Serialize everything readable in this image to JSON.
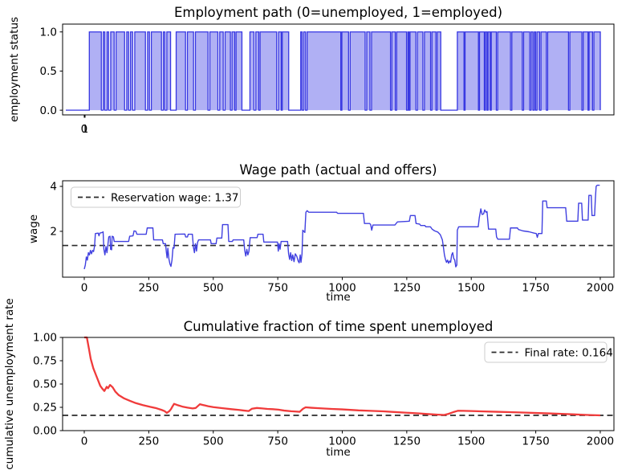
{
  "figure": {
    "background": "#ffffff"
  },
  "colors": {
    "employment_line": "#3636e2",
    "employment_fill": "#b0b0f4",
    "wage_line": "#4040e0",
    "cumulative_line": "#f03b3b",
    "dashed_line": "#2b2b2b",
    "legend_border": "#cccccc",
    "legend_background": "#ffffff",
    "axes_spine": "#000000",
    "text": "#000000"
  },
  "chart_data": [
    {
      "id": "employment",
      "type": "area-step",
      "title": "Employment path (0=unemployed, 1=employed)",
      "xlabel": "",
      "ylabel": "employment status",
      "ytick_labels": [
        "0.0",
        "0.5",
        "1.0"
      ],
      "ytick_values": [
        0,
        0.5,
        1
      ],
      "xticks": [
        {
          "label": "0",
          "t": 69
        },
        {
          "label": "1",
          "t": 72
        }
      ],
      "xlim": [
        -12,
        2051
      ],
      "ylim": [
        -0.06,
        1.1
      ],
      "legend": null,
      "grid": false,
      "employed_value": 1,
      "unemployed_value": 0,
      "time_range": [
        0,
        2000
      ],
      "employed_intervals": [
        [
          88,
          133
        ],
        [
          140,
          146
        ],
        [
          154,
          160
        ],
        [
          168,
          181
        ],
        [
          188,
          220
        ],
        [
          228,
          235
        ],
        [
          242,
          250
        ],
        [
          258,
          298
        ],
        [
          306,
          313
        ],
        [
          320,
          358
        ],
        [
          365,
          371
        ],
        [
          378,
          392
        ],
        [
          413,
          448
        ],
        [
          455,
          478
        ],
        [
          485,
          532
        ],
        [
          539,
          569
        ],
        [
          576,
          589
        ],
        [
          596,
          616
        ],
        [
          622,
          632
        ],
        [
          637,
          659
        ],
        [
          689,
          704
        ],
        [
          711,
          722
        ],
        [
          727,
          789
        ],
        [
          796,
          806
        ],
        [
          810,
          834
        ],
        [
          879,
          884
        ],
        [
          890,
          897
        ],
        [
          903,
          1029
        ],
        [
          1033,
          1058
        ],
        [
          1064,
          1120
        ],
        [
          1126,
          1138
        ],
        [
          1144,
          1215
        ],
        [
          1220,
          1233
        ],
        [
          1238,
          1275
        ],
        [
          1280,
          1284
        ],
        [
          1288,
          1310
        ],
        [
          1316,
          1336
        ],
        [
          1342,
          1365
        ],
        [
          1370,
          1385
        ],
        [
          1390,
          1403
        ],
        [
          1465,
          1490
        ],
        [
          1494,
          1544
        ],
        [
          1548,
          1566
        ],
        [
          1570,
          1576
        ],
        [
          1580,
          1588
        ],
        [
          1592,
          1611
        ],
        [
          1616,
          1664
        ],
        [
          1669,
          1708
        ],
        [
          1713,
          1736
        ],
        [
          1741,
          1748
        ],
        [
          1753,
          1758
        ],
        [
          1763,
          1773
        ],
        [
          1778,
          1798
        ],
        [
          1803,
          1881
        ],
        [
          1886,
          1931
        ],
        [
          1936,
          1954
        ],
        [
          1958,
          1971
        ],
        [
          1976,
          2000
        ]
      ]
    },
    {
      "id": "wage",
      "type": "line",
      "title": "Wage path (actual and offers)",
      "xlabel": "time",
      "ylabel": "wage",
      "xtick_values": [
        0,
        250,
        500,
        750,
        1000,
        1250,
        1500,
        1750,
        2000
      ],
      "xtick_labels": [
        "0",
        "250",
        "500",
        "750",
        "1000",
        "1250",
        "1500",
        "1750",
        "2000"
      ],
      "ytick_values": [
        2,
        4
      ],
      "ytick_labels": [
        "2",
        "4"
      ],
      "xlim": [
        -84,
        2053
      ],
      "ylim": [
        -0.04,
        4.25
      ],
      "grid": false,
      "reservation_wage": 1.37,
      "legend_label": "Reservation wage: 1.37",
      "legend_position": "upper left",
      "series": [
        [
          0,
          0.32
        ],
        [
          4,
          0.5
        ],
        [
          8,
          0.86
        ],
        [
          12,
          0.72
        ],
        [
          16,
          1.05
        ],
        [
          20,
          0.95
        ],
        [
          24,
          1.15
        ],
        [
          28,
          1.0
        ],
        [
          32,
          1.15
        ],
        [
          36,
          1.1
        ],
        [
          40,
          1.35
        ],
        [
          43,
          1.9
        ],
        [
          54,
          1.92
        ],
        [
          57,
          1.8
        ],
        [
          60,
          1.92
        ],
        [
          70,
          1.95
        ],
        [
          73,
          1.98
        ],
        [
          76,
          1.2
        ],
        [
          80,
          0.95
        ],
        [
          84,
          1.32
        ],
        [
          88,
          1.05
        ],
        [
          92,
          1.45
        ],
        [
          95,
          1.75
        ],
        [
          100,
          1.78
        ],
        [
          102,
          1.2
        ],
        [
          106,
          1.18
        ],
        [
          108,
          1.78
        ],
        [
          113,
          1.75
        ],
        [
          116,
          1.55
        ],
        [
          172,
          1.55
        ],
        [
          176,
          1.78
        ],
        [
          189,
          1.8
        ],
        [
          193,
          2.02
        ],
        [
          200,
          2.0
        ],
        [
          204,
          1.87
        ],
        [
          240,
          1.87
        ],
        [
          244,
          2.15
        ],
        [
          266,
          2.15
        ],
        [
          269,
          1.62
        ],
        [
          303,
          1.62
        ],
        [
          306,
          1.45
        ],
        [
          315,
          1.45
        ],
        [
          318,
          1.1
        ],
        [
          321,
          0.82
        ],
        [
          324,
          1.25
        ],
        [
          328,
          0.78
        ],
        [
          332,
          0.55
        ],
        [
          336,
          0.44
        ],
        [
          340,
          0.72
        ],
        [
          344,
          1.28
        ],
        [
          348,
          1.25
        ],
        [
          352,
          1.87
        ],
        [
          390,
          1.88
        ],
        [
          393,
          1.75
        ],
        [
          400,
          1.75
        ],
        [
          403,
          1.87
        ],
        [
          419,
          1.87
        ],
        [
          423,
          1.3
        ],
        [
          427,
          1.05
        ],
        [
          431,
          1.45
        ],
        [
          435,
          1.12
        ],
        [
          439,
          1.5
        ],
        [
          443,
          1.62
        ],
        [
          489,
          1.62
        ],
        [
          492,
          1.45
        ],
        [
          511,
          1.45
        ],
        [
          514,
          1.7
        ],
        [
          533,
          1.7
        ],
        [
          536,
          2.3
        ],
        [
          557,
          2.3
        ],
        [
          560,
          1.55
        ],
        [
          574,
          1.55
        ],
        [
          577,
          1.62
        ],
        [
          618,
          1.62
        ],
        [
          622,
          1.15
        ],
        [
          626,
          0.9
        ],
        [
          630,
          1.2
        ],
        [
          634,
          0.95
        ],
        [
          638,
          1.1
        ],
        [
          643,
          1.72
        ],
        [
          670,
          1.72
        ],
        [
          673,
          1.87
        ],
        [
          693,
          1.87
        ],
        [
          696,
          1.52
        ],
        [
          749,
          1.52
        ],
        [
          752,
          1.12
        ],
        [
          755,
          1.45
        ],
        [
          759,
          1.2
        ],
        [
          763,
          1.55
        ],
        [
          788,
          1.55
        ],
        [
          792,
          1.0
        ],
        [
          796,
          0.75
        ],
        [
          800,
          1.05
        ],
        [
          804,
          0.7
        ],
        [
          808,
          0.95
        ],
        [
          813,
          0.65
        ],
        [
          818,
          1.0
        ],
        [
          824,
          0.88
        ],
        [
          829,
          0.68
        ],
        [
          833,
          0.6
        ],
        [
          837,
          0.95
        ],
        [
          840,
          0.62
        ],
        [
          844,
          1.0
        ],
        [
          847,
          2.05
        ],
        [
          855,
          1.95
        ],
        [
          859,
          2.85
        ],
        [
          864,
          2.92
        ],
        [
          870,
          2.85
        ],
        [
          978,
          2.85
        ],
        [
          982,
          2.8
        ],
        [
          1082,
          2.8
        ],
        [
          1086,
          2.35
        ],
        [
          1106,
          2.35
        ],
        [
          1110,
          2.3
        ],
        [
          1114,
          2.05
        ],
        [
          1119,
          2.28
        ],
        [
          1204,
          2.28
        ],
        [
          1214,
          2.42
        ],
        [
          1260,
          2.45
        ],
        [
          1264,
          2.7
        ],
        [
          1282,
          2.7
        ],
        [
          1286,
          2.35
        ],
        [
          1300,
          2.32
        ],
        [
          1304,
          2.26
        ],
        [
          1320,
          2.26
        ],
        [
          1324,
          2.2
        ],
        [
          1342,
          2.2
        ],
        [
          1348,
          2.1
        ],
        [
          1358,
          2.02
        ],
        [
          1370,
          1.97
        ],
        [
          1380,
          1.85
        ],
        [
          1388,
          1.62
        ],
        [
          1392,
          1.3
        ],
        [
          1396,
          0.95
        ],
        [
          1400,
          0.75
        ],
        [
          1404,
          0.62
        ],
        [
          1408,
          0.72
        ],
        [
          1412,
          0.58
        ],
        [
          1416,
          0.68
        ],
        [
          1420,
          0.62
        ],
        [
          1424,
          0.95
        ],
        [
          1428,
          1.05
        ],
        [
          1432,
          0.8
        ],
        [
          1436,
          0.72
        ],
        [
          1440,
          0.42
        ],
        [
          1444,
          0.5
        ],
        [
          1446,
          2.05
        ],
        [
          1451,
          2.2
        ],
        [
          1527,
          2.2
        ],
        [
          1531,
          2.6
        ],
        [
          1537,
          3.0
        ],
        [
          1542,
          2.75
        ],
        [
          1548,
          2.78
        ],
        [
          1552,
          2.95
        ],
        [
          1557,
          2.85
        ],
        [
          1561,
          2.88
        ],
        [
          1567,
          2.1
        ],
        [
          1595,
          2.1
        ],
        [
          1598,
          1.75
        ],
        [
          1603,
          1.65
        ],
        [
          1648,
          1.65
        ],
        [
          1652,
          2.15
        ],
        [
          1679,
          2.15
        ],
        [
          1683,
          2.08
        ],
        [
          1700,
          2.02
        ],
        [
          1724,
          1.98
        ],
        [
          1744,
          1.92
        ],
        [
          1752,
          1.9
        ],
        [
          1756,
          1.73
        ],
        [
          1760,
          1.9
        ],
        [
          1774,
          1.9
        ],
        [
          1777,
          3.35
        ],
        [
          1791,
          3.35
        ],
        [
          1794,
          3.05
        ],
        [
          1866,
          3.05
        ],
        [
          1870,
          2.45
        ],
        [
          1913,
          2.45
        ],
        [
          1916,
          3.25
        ],
        [
          1928,
          3.25
        ],
        [
          1931,
          2.5
        ],
        [
          1953,
          2.5
        ],
        [
          1956,
          3.6
        ],
        [
          1965,
          3.6
        ],
        [
          1968,
          2.7
        ],
        [
          1978,
          2.7
        ],
        [
          1981,
          3.45
        ],
        [
          1984,
          4.0
        ],
        [
          1988,
          4.05
        ],
        [
          1998,
          4.05
        ]
      ]
    },
    {
      "id": "cumulative",
      "type": "line",
      "title": "Cumulative fraction of time spent unemployed",
      "xlabel": "time",
      "ylabel": "cumulative unemployment rate",
      "xtick_values": [
        0,
        250,
        500,
        750,
        1000,
        1250,
        1500,
        1750,
        2000
      ],
      "xtick_labels": [
        "0",
        "250",
        "500",
        "750",
        "1000",
        "1250",
        "1500",
        "1750",
        "2000"
      ],
      "ytick_values": [
        0,
        0.25,
        0.5,
        0.75,
        1.0
      ],
      "ytick_labels": [
        "0.00",
        "0.25",
        "0.50",
        "0.75",
        "1.00"
      ],
      "xlim": [
        -84,
        2053
      ],
      "ylim": [
        0,
        1
      ],
      "grid": false,
      "final_rate": 0.164,
      "legend_label": "Final rate: 0.164",
      "legend_position": "upper right",
      "series": [
        [
          0,
          1.0
        ],
        [
          10,
          1.0
        ],
        [
          18,
          0.88
        ],
        [
          25,
          0.77
        ],
        [
          35,
          0.67
        ],
        [
          47,
          0.585
        ],
        [
          62,
          0.48
        ],
        [
          70,
          0.45
        ],
        [
          78,
          0.425
        ],
        [
          87,
          0.47
        ],
        [
          92,
          0.455
        ],
        [
          100,
          0.49
        ],
        [
          110,
          0.465
        ],
        [
          120,
          0.42
        ],
        [
          134,
          0.38
        ],
        [
          155,
          0.345
        ],
        [
          177,
          0.32
        ],
        [
          200,
          0.295
        ],
        [
          227,
          0.274
        ],
        [
          255,
          0.255
        ],
        [
          280,
          0.24
        ],
        [
          300,
          0.222
        ],
        [
          311,
          0.21
        ],
        [
          320,
          0.19
        ],
        [
          330,
          0.21
        ],
        [
          336,
          0.23
        ],
        [
          342,
          0.26
        ],
        [
          348,
          0.287
        ],
        [
          360,
          0.275
        ],
        [
          380,
          0.258
        ],
        [
          400,
          0.247
        ],
        [
          420,
          0.238
        ],
        [
          432,
          0.243
        ],
        [
          448,
          0.283
        ],
        [
          460,
          0.275
        ],
        [
          480,
          0.262
        ],
        [
          500,
          0.252
        ],
        [
          520,
          0.246
        ],
        [
          544,
          0.238
        ],
        [
          570,
          0.23
        ],
        [
          600,
          0.222
        ],
        [
          620,
          0.215
        ],
        [
          637,
          0.21
        ],
        [
          650,
          0.235
        ],
        [
          669,
          0.243
        ],
        [
          690,
          0.238
        ],
        [
          710,
          0.233
        ],
        [
          730,
          0.23
        ],
        [
          752,
          0.225
        ],
        [
          775,
          0.215
        ],
        [
          802,
          0.208
        ],
        [
          820,
          0.205
        ],
        [
          835,
          0.202
        ],
        [
          848,
          0.235
        ],
        [
          858,
          0.25
        ],
        [
          880,
          0.245
        ],
        [
          910,
          0.24
        ],
        [
          958,
          0.233
        ],
        [
          1000,
          0.228
        ],
        [
          1063,
          0.217
        ],
        [
          1110,
          0.212
        ],
        [
          1160,
          0.207
        ],
        [
          1200,
          0.2
        ],
        [
          1250,
          0.192
        ],
        [
          1300,
          0.184
        ],
        [
          1340,
          0.176
        ],
        [
          1370,
          0.171
        ],
        [
          1395,
          0.168
        ],
        [
          1412,
          0.18
        ],
        [
          1430,
          0.198
        ],
        [
          1448,
          0.213
        ],
        [
          1470,
          0.212
        ],
        [
          1500,
          0.21
        ],
        [
          1550,
          0.206
        ],
        [
          1600,
          0.202
        ],
        [
          1650,
          0.198
        ],
        [
          1700,
          0.194
        ],
        [
          1750,
          0.189
        ],
        [
          1800,
          0.185
        ],
        [
          1850,
          0.18
        ],
        [
          1900,
          0.174
        ],
        [
          1950,
          0.168
        ],
        [
          2000,
          0.164
        ]
      ]
    }
  ]
}
